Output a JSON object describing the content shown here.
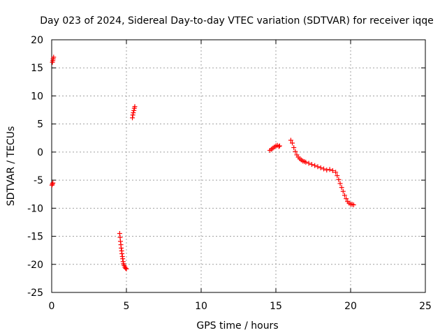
{
  "chart_data": {
    "type": "scatter",
    "title": "Day 023 of 2024, Sidereal Day-to-day VTEC variation (SDTVAR) for receiver iqqe",
    "xlabel": "GPS time / hours",
    "ylabel": "SDTVAR / TECUs",
    "xlim": [
      0,
      25
    ],
    "ylim": [
      -25,
      20
    ],
    "xticks": [
      0,
      5,
      10,
      15,
      20,
      25
    ],
    "yticks": [
      -25,
      -20,
      -15,
      -10,
      -5,
      0,
      5,
      10,
      15,
      20
    ],
    "grid": true,
    "marker": "plus",
    "color": "#ff0000",
    "series": [
      {
        "name": "SDTVAR",
        "points": [
          [
            0.05,
            16.0
          ],
          [
            0.08,
            16.3
          ],
          [
            0.1,
            16.6
          ],
          [
            0.13,
            16.9
          ],
          [
            0.02,
            -5.9
          ],
          [
            0.05,
            -5.7
          ],
          [
            0.08,
            -5.5
          ],
          [
            4.55,
            -14.5
          ],
          [
            4.58,
            -15.2
          ],
          [
            4.6,
            -15.9
          ],
          [
            4.63,
            -16.5
          ],
          [
            4.65,
            -17.1
          ],
          [
            4.68,
            -17.6
          ],
          [
            4.7,
            -18.1
          ],
          [
            4.73,
            -18.6
          ],
          [
            4.75,
            -19.0
          ],
          [
            4.78,
            -19.5
          ],
          [
            4.8,
            -19.9
          ],
          [
            4.85,
            -20.2
          ],
          [
            4.9,
            -20.5
          ],
          [
            4.95,
            -20.7
          ],
          [
            5.0,
            -20.8
          ],
          [
            5.4,
            6.1
          ],
          [
            5.43,
            6.6
          ],
          [
            5.46,
            7.0
          ],
          [
            5.5,
            7.4
          ],
          [
            5.53,
            7.8
          ],
          [
            5.56,
            8.1
          ],
          [
            14.6,
            0.3
          ],
          [
            14.7,
            0.5
          ],
          [
            14.8,
            0.7
          ],
          [
            14.9,
            0.9
          ],
          [
            15.0,
            1.1
          ],
          [
            15.1,
            1.2
          ],
          [
            15.2,
            1.0
          ],
          [
            15.25,
            1.1
          ],
          [
            16.0,
            2.1
          ],
          [
            16.1,
            1.6
          ],
          [
            16.2,
            0.8
          ],
          [
            16.3,
            0.1
          ],
          [
            16.4,
            -0.5
          ],
          [
            16.5,
            -0.9
          ],
          [
            16.6,
            -1.2
          ],
          [
            16.7,
            -1.4
          ],
          [
            16.8,
            -1.6
          ],
          [
            16.9,
            -1.7
          ],
          [
            17.0,
            -1.8
          ],
          [
            17.2,
            -2.0
          ],
          [
            17.4,
            -2.2
          ],
          [
            17.6,
            -2.4
          ],
          [
            17.8,
            -2.6
          ],
          [
            18.0,
            -2.8
          ],
          [
            18.2,
            -3.0
          ],
          [
            18.4,
            -3.2
          ],
          [
            18.6,
            -3.1
          ],
          [
            18.8,
            -3.3
          ],
          [
            19.0,
            -3.6
          ],
          [
            19.1,
            -4.2
          ],
          [
            19.2,
            -4.9
          ],
          [
            19.3,
            -5.6
          ],
          [
            19.4,
            -6.3
          ],
          [
            19.5,
            -7.0
          ],
          [
            19.6,
            -7.7
          ],
          [
            19.7,
            -8.3
          ],
          [
            19.8,
            -8.8
          ],
          [
            19.9,
            -9.1
          ],
          [
            20.0,
            -9.3
          ],
          [
            20.1,
            -9.3
          ],
          [
            20.2,
            -9.4
          ]
        ]
      }
    ]
  }
}
